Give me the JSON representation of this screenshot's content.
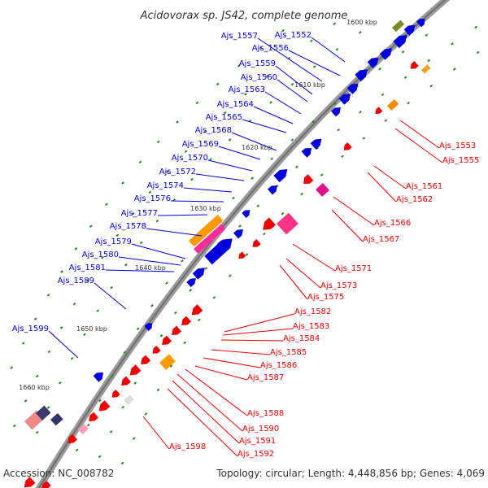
{
  "title": "Acidovorax sp. JS42, complete genome",
  "footer": {
    "accession": "Accession: NC_008782",
    "summary": "Topology: circular; Length: 4,448,856 bp; Genes: 4,069"
  },
  "colors": {
    "plus_strand": "#0000dd",
    "minus_strand": "#ee0000",
    "backbone": "#888888",
    "tick": "#228822"
  },
  "kbp_labels": [
    "1600 kbp",
    "1610 kbp",
    "1620 kbp",
    "1630 kbp",
    "1640 kbp",
    "1650 kbp",
    "1660 kbp"
  ],
  "plus_labels": [
    "Ajs_1552",
    "Ajs_1556",
    "Ajs_1557",
    "Ajs_1559",
    "Ajs_1560",
    "Ajs_1563",
    "Ajs_1564",
    "Ajs_1565",
    "Ajs_1568",
    "Ajs_1569",
    "Ajs_1570",
    "Ajs_1572",
    "Ajs_1574",
    "Ajs_1576",
    "Ajs_1577",
    "Ajs_1578",
    "Ajs_1579",
    "Ajs_1580",
    "Ajs_1581",
    "Ajs_1589",
    "Ajs_1599"
  ],
  "minus_labels": [
    "Ajs_1553",
    "Ajs_1555",
    "Ajs_1561",
    "Ajs_1562",
    "Ajs_1566",
    "Ajs_1567",
    "Ajs_1571",
    "Ajs_1573",
    "Ajs_1575",
    "Ajs_1582",
    "Ajs_1583",
    "Ajs_1584",
    "Ajs_1585",
    "Ajs_1586",
    "Ajs_1587",
    "Ajs_1588",
    "Ajs_1590",
    "Ajs_1591",
    "Ajs_1592",
    "Ajs_1598"
  ]
}
